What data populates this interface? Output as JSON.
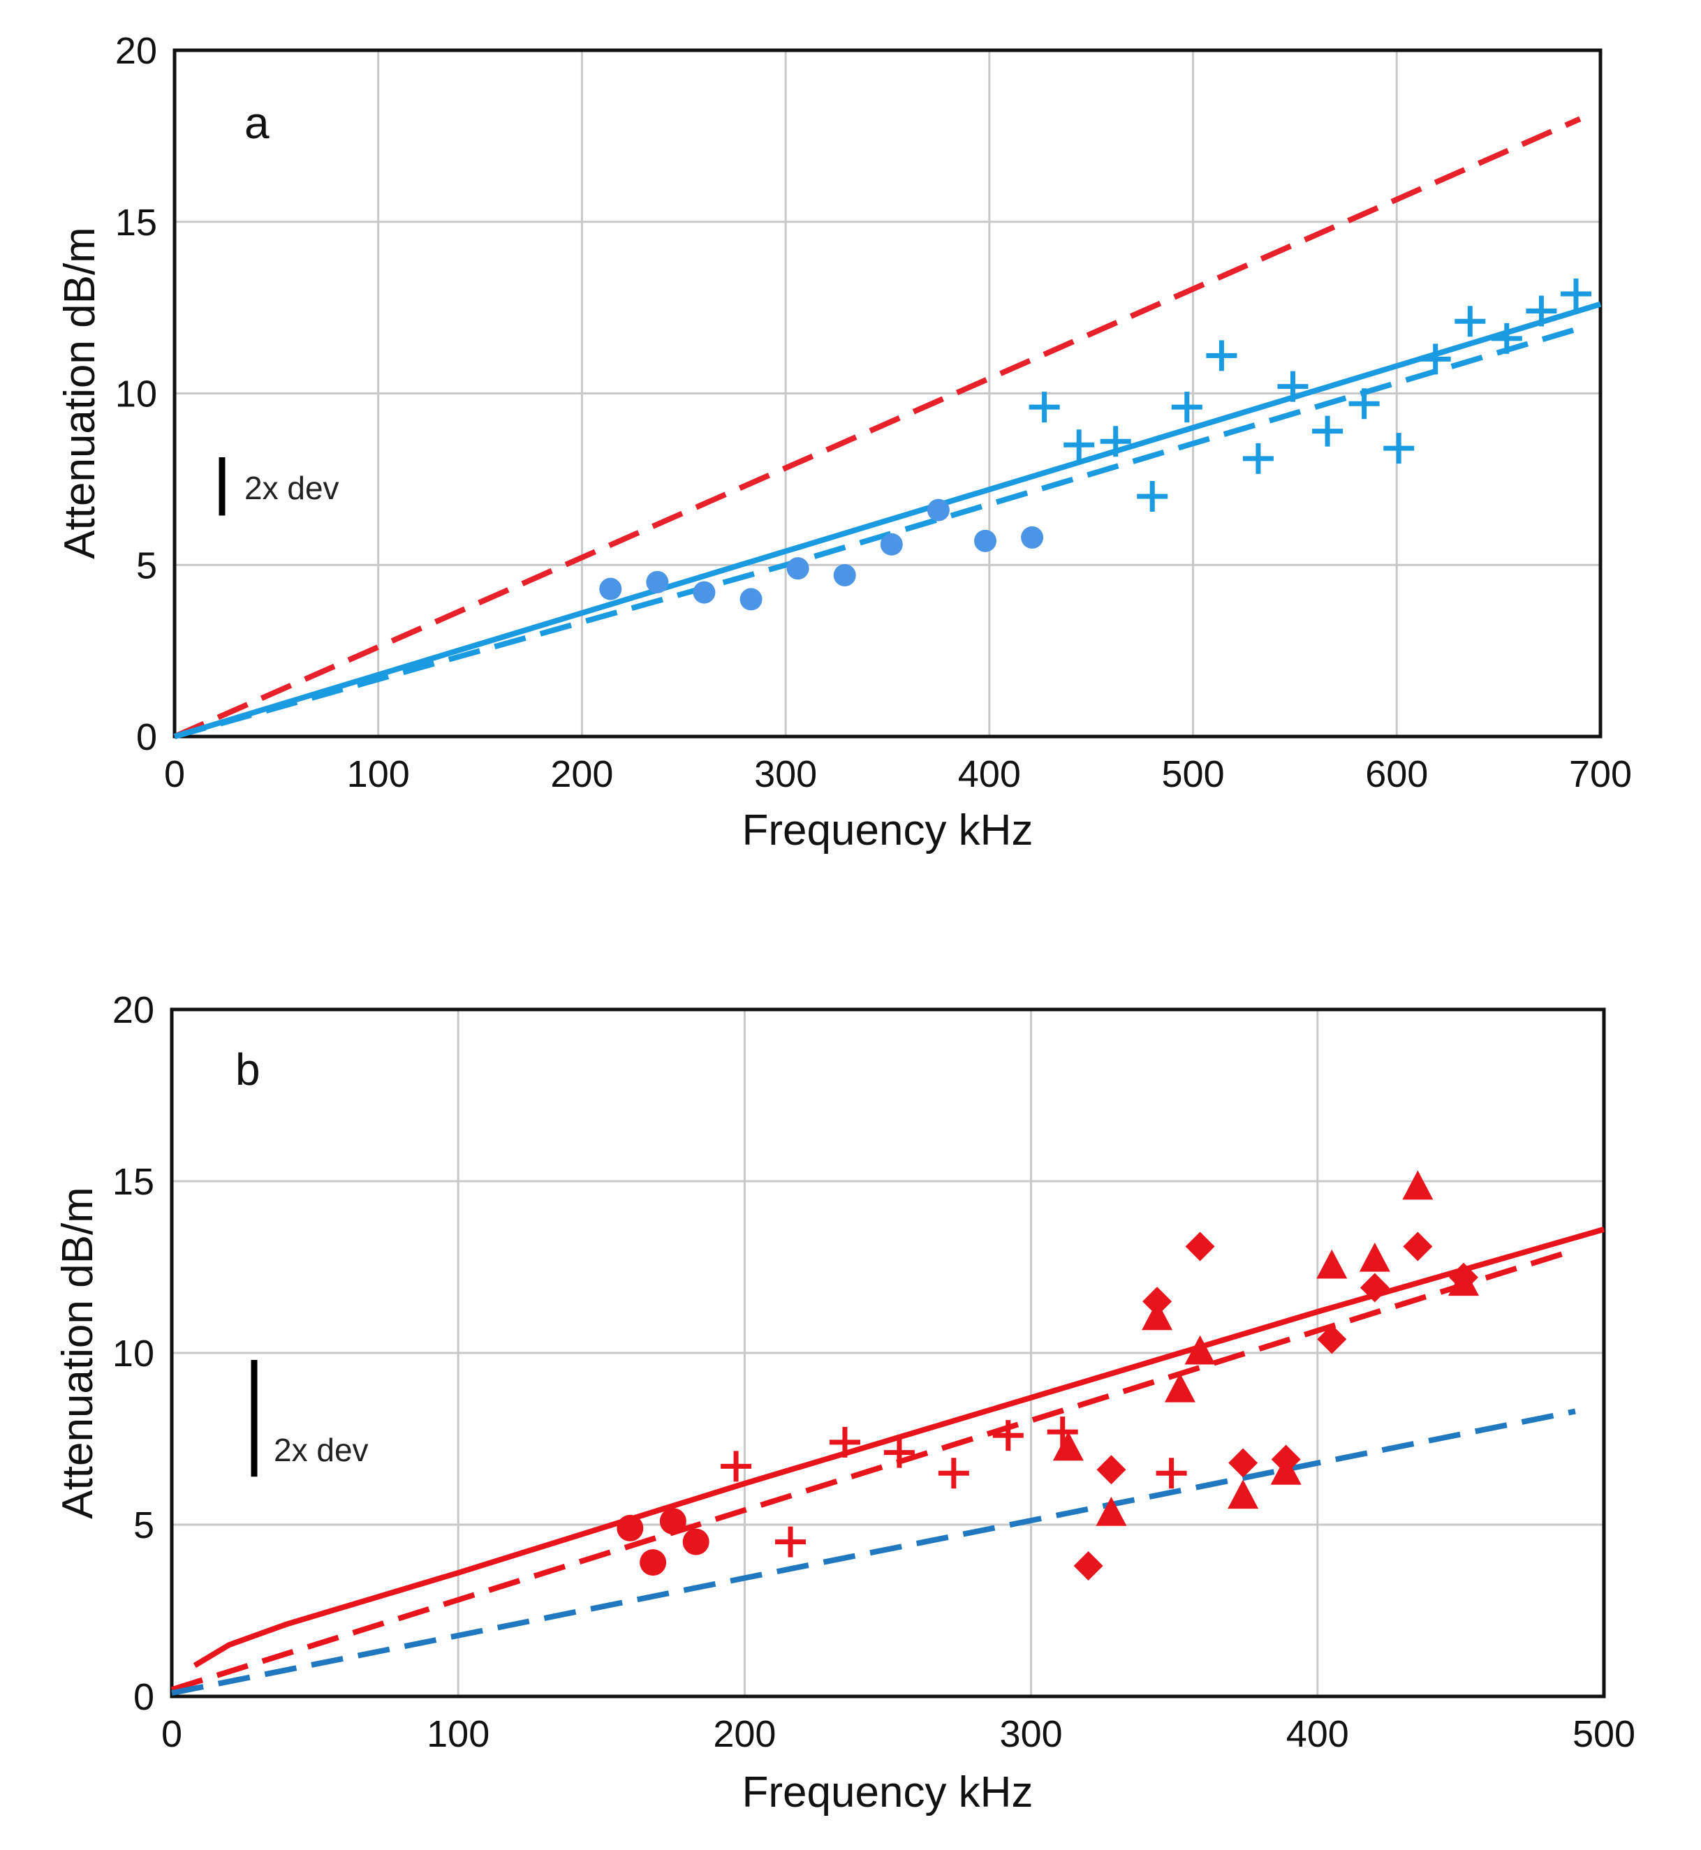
{
  "chart_data": [
    {
      "panel": "a",
      "type": "scatter",
      "xlabel": "Frequency  kHz",
      "ylabel": "Attenuation  dB/m",
      "xlim": [
        0,
        700
      ],
      "ylim": [
        0,
        20
      ],
      "x_ticks": [
        "0",
        "100",
        "200",
        "300",
        "400",
        "500",
        "600",
        "700"
      ],
      "y_ticks": [
        "0",
        "5",
        "10",
        "15",
        "20"
      ],
      "grid": true,
      "dev_bar": {
        "label": "2x dev",
        "length": 1.7
      },
      "colors": {
        "red": "#e8202a",
        "blue": "#1a9ae0",
        "dot": "#4a95e6"
      },
      "lines": [
        {
          "name": "red-dashed",
          "style": "dashed",
          "color": "#e8202a",
          "x": [
            0,
            690
          ],
          "y": [
            0,
            18.0
          ]
        },
        {
          "name": "blue-solid",
          "style": "solid",
          "color": "#1a9ae0",
          "x": [
            0,
            700
          ],
          "y": [
            0,
            12.6
          ]
        },
        {
          "name": "blue-dashed",
          "style": "dashed",
          "color": "#1a9ae0",
          "x": [
            0,
            300,
            690
          ],
          "y": [
            0,
            5.0,
            11.9
          ]
        }
      ],
      "series": [
        {
          "name": "dots",
          "marker": "circle",
          "color": "#4a95e6",
          "x": [
            214,
            237,
            260,
            283,
            306,
            329,
            352,
            375,
            398,
            421
          ],
          "y": [
            4.3,
            4.5,
            4.2,
            4.0,
            4.9,
            4.7,
            5.6,
            6.6,
            5.7,
            5.8
          ]
        },
        {
          "name": "crosses",
          "marker": "plus",
          "color": "#1a9ae0",
          "x": [
            427,
            444,
            462,
            480,
            497,
            514,
            532,
            549,
            566,
            584,
            601,
            619,
            636,
            654,
            671,
            688
          ],
          "y": [
            9.6,
            8.5,
            8.6,
            7.0,
            9.6,
            11.1,
            8.1,
            10.2,
            8.9,
            9.7,
            8.4,
            11.0,
            12.1,
            11.6,
            12.4,
            12.9
          ]
        }
      ]
    },
    {
      "panel": "b",
      "type": "scatter",
      "xlabel": "Frequency  kHz",
      "ylabel": "Attenuation  dB/m",
      "xlim": [
        0,
        500
      ],
      "ylim": [
        0,
        20
      ],
      "x_ticks": [
        "0",
        "100",
        "200",
        "300",
        "400",
        "500"
      ],
      "y_ticks": [
        "0",
        "5",
        "10",
        "15",
        "20"
      ],
      "grid": true,
      "dev_bar": {
        "label": "2x dev",
        "length": 3.4
      },
      "colors": {
        "red": "#e8141c",
        "blue": "#1f78c0"
      },
      "lines": [
        {
          "name": "red-solid",
          "style": "solid",
          "color": "#e8141c",
          "x": [
            8,
            20,
            40,
            60,
            80,
            100,
            150,
            200,
            300,
            400,
            500
          ],
          "y": [
            0.9,
            1.5,
            2.1,
            2.6,
            3.1,
            3.6,
            4.9,
            6.2,
            8.7,
            11.2,
            13.6
          ]
        },
        {
          "name": "red-dashed",
          "style": "dashed",
          "color": "#e8141c",
          "x": [
            0,
            490
          ],
          "y": [
            0.2,
            13.0
          ]
        },
        {
          "name": "blue-dashed",
          "style": "dashed",
          "color": "#1f78c0",
          "x": [
            0,
            490
          ],
          "y": [
            0.1,
            8.3
          ]
        }
      ],
      "series": [
        {
          "name": "circles",
          "marker": "circle",
          "color": "#e8141c",
          "x": [
            160,
            168,
            175,
            183
          ],
          "y": [
            4.9,
            3.9,
            5.1,
            4.5
          ]
        },
        {
          "name": "crosses",
          "marker": "plus",
          "color": "#e8141c",
          "x": [
            197,
            216,
            235,
            254,
            273,
            292,
            311,
            349
          ],
          "y": [
            6.7,
            4.5,
            7.4,
            7.1,
            6.5,
            7.6,
            7.7,
            6.5
          ]
        },
        {
          "name": "triangles",
          "marker": "triangle",
          "color": "#e8141c",
          "x": [
            313,
            328,
            344,
            352,
            359,
            374,
            389,
            405,
            420,
            435,
            451
          ],
          "y": [
            7.2,
            5.3,
            11.0,
            8.9,
            10.0,
            5.8,
            6.5,
            12.5,
            12.7,
            14.8,
            12.0
          ]
        },
        {
          "name": "diamonds",
          "marker": "diamond",
          "color": "#e8141c",
          "x": [
            320,
            328,
            344,
            359,
            374,
            389,
            405,
            420,
            435,
            451
          ],
          "y": [
            3.8,
            6.6,
            11.5,
            13.1,
            6.8,
            6.9,
            10.4,
            11.9,
            13.1,
            12.2
          ]
        }
      ]
    }
  ]
}
